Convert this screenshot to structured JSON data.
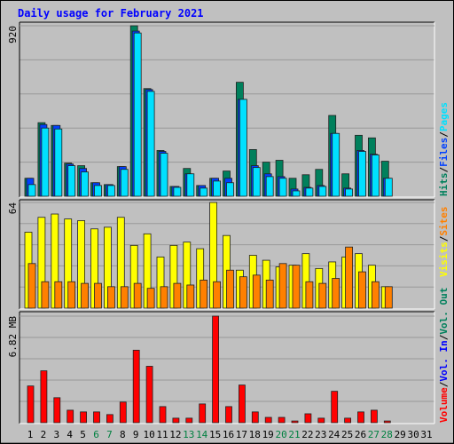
{
  "chart_data": [
    {
      "type": "bar",
      "title": "Daily usage for February 2021",
      "categories": [
        "1",
        "2",
        "3",
        "4",
        "5",
        "6",
        "7",
        "8",
        "9",
        "10",
        "11",
        "12",
        "13",
        "14",
        "15",
        "16",
        "17",
        "18",
        "19",
        "20",
        "21",
        "22",
        "23",
        "24",
        "25",
        "26",
        "27",
        "28",
        "29",
        "30",
        "31"
      ],
      "category_colors": [
        "#000000",
        "#000000",
        "#000000",
        "#000000",
        "#000000",
        "#008040",
        "#008040",
        "#000000",
        "#000000",
        "#000000",
        "#000000",
        "#000000",
        "#008040",
        "#008040",
        "#000000",
        "#000000",
        "#000000",
        "#000000",
        "#000000",
        "#008040",
        "#008040",
        "#000000",
        "#000000",
        "#000000",
        "#000000",
        "#000000",
        "#008040",
        "#008040",
        "#000000",
        "#000000",
        "#000000"
      ],
      "legend_separator": "/",
      "ylim": [
        0,
        920
      ],
      "yticks": [
        920
      ],
      "series": [
        {
          "name": "Hits",
          "color": "#00805c",
          "values": [
            97,
            397,
            382,
            179,
            165,
            73,
            63,
            160,
            920,
            581,
            247,
            53,
            150,
            58,
            97,
            136,
            615,
            252,
            184,
            194,
            97,
            116,
            145,
            436,
            121,
            329,
            315,
            189,
            null,
            null,
            null
          ]
        },
        {
          "name": "Files",
          "color": "#0040ff",
          "values": [
            97,
            387,
            382,
            174,
            150,
            73,
            63,
            160,
            891,
            576,
            242,
            53,
            121,
            58,
            97,
            97,
            523,
            165,
            121,
            106,
            39,
            48,
            58,
            339,
            44,
            247,
            227,
            97,
            null,
            null,
            null
          ]
        },
        {
          "name": "Pages",
          "color": "#00e0ff",
          "values": [
            63,
            368,
            363,
            165,
            131,
            58,
            58,
            145,
            881,
            566,
            232,
            48,
            121,
            44,
            82,
            73,
            523,
            155,
            106,
            97,
            29,
            44,
            53,
            339,
            39,
            242,
            223,
            97,
            null,
            null,
            null
          ]
        }
      ]
    },
    {
      "type": "bar",
      "ylim": [
        0,
        64
      ],
      "yticks": [
        64
      ],
      "series": [
        {
          "name": "Visits",
          "color": "#ffff00",
          "values": [
            46,
            55,
            57,
            54,
            53,
            48,
            49,
            55,
            38,
            45,
            31,
            38,
            40,
            36,
            64,
            44,
            23,
            32,
            29,
            25,
            26,
            33,
            24,
            28,
            31,
            33,
            26,
            13,
            null,
            null,
            null
          ]
        },
        {
          "name": "Sites",
          "color": "#ff8000",
          "values": [
            27,
            16,
            16,
            16,
            15,
            15,
            13,
            13,
            15,
            12,
            13,
            15,
            14,
            17,
            16,
            23,
            19,
            20,
            17,
            27,
            26,
            16,
            15,
            18,
            37,
            22,
            16,
            13,
            null,
            null,
            null
          ]
        }
      ]
    },
    {
      "type": "bar",
      "ylim": [
        0,
        6.82
      ],
      "yticks": [
        {
          "value": 6.82,
          "label": "6.82 MB"
        }
      ],
      "series": [
        {
          "name": "Volume",
          "color": "#ff0000",
          "values": [
            2.35,
            3.32,
            1.6,
            0.8,
            0.69,
            0.69,
            0.52,
            1.32,
            4.64,
            3.61,
            1.03,
            0.29,
            0.29,
            1.2,
            6.82,
            1.03,
            2.41,
            0.69,
            0.34,
            0.34,
            0.11,
            0.57,
            0.29,
            2.01,
            0.29,
            0.69,
            0.8,
            0.11,
            null,
            null,
            null
          ]
        },
        {
          "name": "Vol. In",
          "color": "#0000ff"
        },
        {
          "name": "Vol. Out",
          "color": "#00805c"
        }
      ]
    }
  ]
}
